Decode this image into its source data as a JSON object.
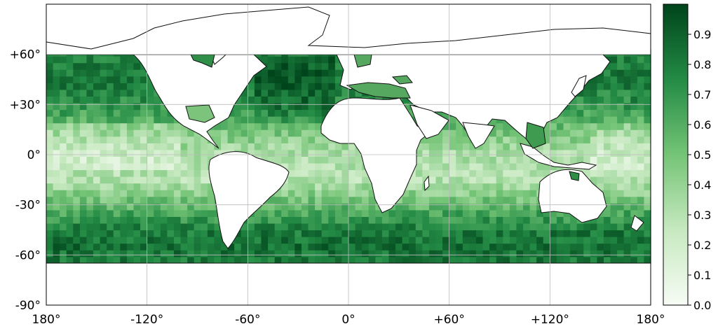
{
  "map": {
    "lon_ticks": [
      "180°",
      "-120°",
      "-60°",
      "0°",
      "+60°",
      "+120°",
      "180°"
    ],
    "lat_ticks": [
      "+60°",
      "+30°",
      "0°",
      "-30°",
      "-60°",
      "-90°"
    ],
    "data_lat_range": [
      -65,
      60
    ],
    "grid_resolution_deg": 4
  },
  "colorbar": {
    "ticks": [
      "0.0",
      "0.1",
      "0.2",
      "0.3",
      "0.4",
      "0.5",
      "0.6",
      "0.7",
      "0.8",
      "0.9"
    ],
    "range": [
      0.0,
      1.0
    ],
    "colormap": "Greens",
    "low_color": "#f7fcf5",
    "mid_color": "#74c476",
    "high_color": "#00441b"
  },
  "chart_data": {
    "type": "heatmap",
    "title": "",
    "xlabel": "",
    "ylabel": "",
    "xlim": [
      -180,
      180
    ],
    "ylim": [
      -90,
      90
    ],
    "value_range": [
      0.0,
      1.0
    ],
    "latitude_profile": [
      {
        "lat": 60,
        "value": 0.78
      },
      {
        "lat": 45,
        "value": 0.82
      },
      {
        "lat": 30,
        "value": 0.72
      },
      {
        "lat": 15,
        "value": 0.5
      },
      {
        "lat": 0,
        "value": 0.32
      },
      {
        "lat": -15,
        "value": 0.3
      },
      {
        "lat": -30,
        "value": 0.55
      },
      {
        "lat": -45,
        "value": 0.8
      },
      {
        "lat": -55,
        "value": 0.85
      },
      {
        "lat": -65,
        "value": 0.8
      }
    ]
  }
}
